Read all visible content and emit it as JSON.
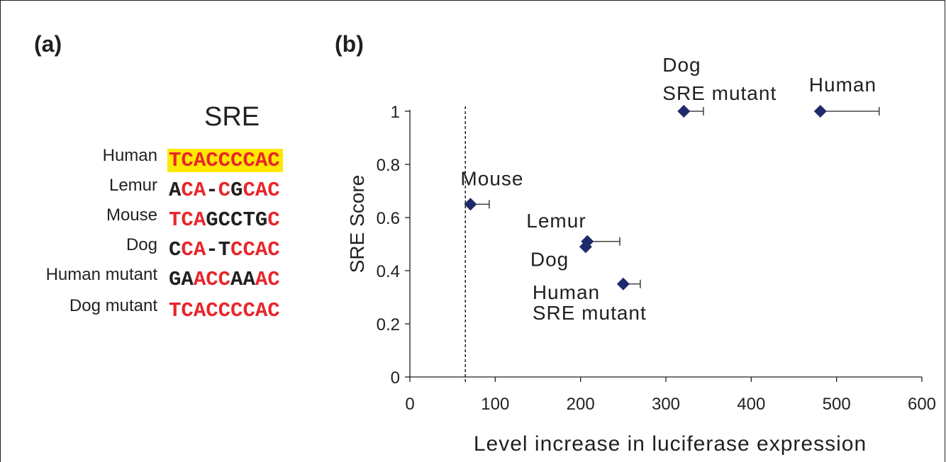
{
  "panel_a": {
    "label": "(a)",
    "title": "SRE",
    "rows": [
      {
        "name": "Human",
        "seq": "TCACCCCAC",
        "colors": "RRRRRRRRR",
        "highlight": true
      },
      {
        "name": "Lemur",
        "seq": "ACA-CGCAC",
        "colors": "KRRKRKRRR",
        "highlight": false
      },
      {
        "name": "Mouse",
        "seq": "TCAGCCTGC",
        "colors": "RRRKKKKKR",
        "highlight": false
      },
      {
        "name": "Dog",
        "seq": "CCA-TCCAC",
        "colors": "KRRKKRRRR",
        "highlight": false
      },
      {
        "name": "Human mutant",
        "seq": "GAACCAAAC",
        "colors": "KKRRRKKRR",
        "highlight": false
      },
      {
        "name": "Dog mutant",
        "seq": "TCACCCCAC",
        "colors": "RRRRRRRRR",
        "highlight": false
      }
    ]
  },
  "panel_b": {
    "label": "(b)"
  },
  "colors": {
    "red": "#e8262b",
    "black": "#231f20",
    "highlight": "#ffe800",
    "marker": "#1f2a6b"
  },
  "chart_data": {
    "type": "scatter",
    "xlabel": "Level increase in luciferase expression",
    "ylabel": "SRE Score",
    "xlim": [
      0,
      600
    ],
    "ylim": [
      0,
      1
    ],
    "xticks": [
      0,
      100,
      200,
      300,
      400,
      500,
      600
    ],
    "yticks": [
      0,
      0.2,
      0.4,
      0.6,
      0.8,
      1
    ],
    "ytick_labels": [
      "0",
      "0.2",
      "0.4",
      "0.6",
      "0.8",
      "1"
    ],
    "reference_line_x": 65,
    "points": [
      {
        "label": "Human",
        "x": 481,
        "y": 1.0,
        "err_plus": 69
      },
      {
        "label": "Dog SRE mutant",
        "x": 321,
        "y": 1.0,
        "err_plus": 23
      },
      {
        "label": "Mouse",
        "x": 71,
        "y": 0.65,
        "err_plus": 22
      },
      {
        "label": "Lemur",
        "x": 208,
        "y": 0.51,
        "err_plus": 38
      },
      {
        "label": "Dog",
        "x": 206,
        "y": 0.49,
        "err_plus": 0
      },
      {
        "label": "Human SRE mutant",
        "x": 250,
        "y": 0.35,
        "err_plus": 20
      }
    ],
    "annotations": [
      {
        "text": "Dog",
        "point": 1
      },
      {
        "text": "SRE mutant",
        "point": 1
      },
      {
        "text": "Human",
        "point": 0
      },
      {
        "text": "Mouse",
        "point": 2
      },
      {
        "text": "Lemur",
        "point": 3
      },
      {
        "text": "Dog",
        "point": 4
      },
      {
        "text": "Human",
        "point": 5
      },
      {
        "text": "SRE mutant",
        "point": 5
      }
    ]
  }
}
